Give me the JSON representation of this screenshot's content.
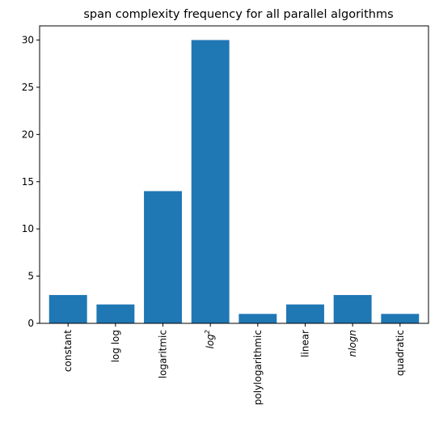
{
  "chart_data": {
    "type": "bar",
    "title": "span complexity frequency for all parallel algorithms",
    "xlabel": "",
    "ylabel": "",
    "categories": [
      "constant",
      "log log",
      "logaritmic",
      "log2",
      "polylogarithmic",
      "linear",
      "nlogn",
      "quadratic"
    ],
    "category_italic": [
      false,
      false,
      false,
      true,
      false,
      false,
      true,
      false
    ],
    "values": [
      3,
      2,
      14,
      30,
      1,
      2,
      3,
      1
    ],
    "ylim": [
      0,
      31.5
    ],
    "yticks": [
      0,
      5,
      10,
      15,
      20,
      25,
      30
    ],
    "xtick_rotation": "vertical",
    "grid": false,
    "legend": "none",
    "bar_color": "#1f77b4"
  }
}
